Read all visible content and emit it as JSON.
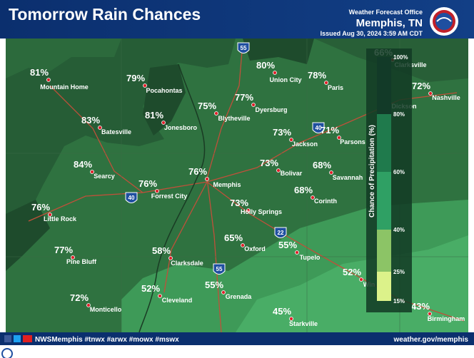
{
  "header": {
    "title": "Tomorrow Rain Chances",
    "office": "Weather Forecast Office",
    "location": "Memphis, TN",
    "issued": "Issued Aug 30, 2024 3:59 AM CDT"
  },
  "cities": [
    {
      "name": "Mountain Home",
      "pct": "81%"
    },
    {
      "name": "Pocahontas",
      "pct": "79%"
    },
    {
      "name": "Union City",
      "pct": "80%"
    },
    {
      "name": "Paris",
      "pct": "78%"
    },
    {
      "name": "Nashville",
      "pct": "72%"
    },
    {
      "name": "Dyersburg",
      "pct": "77%"
    },
    {
      "name": "Blytheville",
      "pct": "75%"
    },
    {
      "name": "Jonesboro",
      "pct": "81%"
    },
    {
      "name": "Batesville",
      "pct": "83%"
    },
    {
      "name": "Jackson",
      "pct": "73%"
    },
    {
      "name": "Parsons",
      "pct": "71%"
    },
    {
      "name": "Bolivar",
      "pct": "73%"
    },
    {
      "name": "Savannah",
      "pct": "68%"
    },
    {
      "name": "Searcy",
      "pct": "84%"
    },
    {
      "name": "Memphis",
      "pct": "76%"
    },
    {
      "name": "Forrest City",
      "pct": "76%"
    },
    {
      "name": "Corinth",
      "pct": "68%"
    },
    {
      "name": "Holly Springs",
      "pct": "73%"
    },
    {
      "name": "Little Rock",
      "pct": "76%"
    },
    {
      "name": "Oxford",
      "pct": "65%"
    },
    {
      "name": "Tupelo",
      "pct": "55%"
    },
    {
      "name": "Clarksdale",
      "pct": "58%"
    },
    {
      "name": "Pine Bluff",
      "pct": "77%"
    },
    {
      "name": "Win",
      "pct": "52%"
    },
    {
      "name": "Cleveland",
      "pct": "52%"
    },
    {
      "name": "Grenada",
      "pct": "55%"
    },
    {
      "name": "Monticello",
      "pct": "72%"
    },
    {
      "name": "Starkville",
      "pct": "45%"
    },
    {
      "name": "Birmingham",
      "pct": "43%"
    },
    {
      "name": "Clarksville",
      "pct": "66%"
    }
  ],
  "places": [
    "Dickson"
  ],
  "interstates": [
    "55",
    "40",
    "40",
    "22",
    "55"
  ],
  "legend": {
    "title": "Chance of Precipitation (%)",
    "labels": [
      "100%",
      "80%",
      "60%",
      "40%",
      "25%",
      "15%"
    ]
  },
  "footer": {
    "social": "NWSMemphis #tnwx #arwx #mowx #mswx",
    "url": "weather.gov/memphis"
  }
}
